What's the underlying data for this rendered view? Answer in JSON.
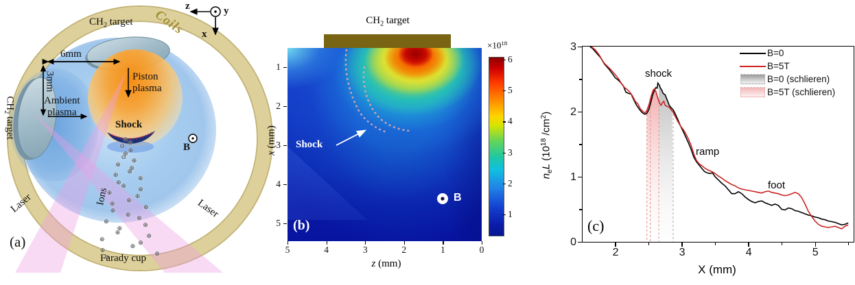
{
  "panel_a": {
    "label": "(a)",
    "coils": "Coils",
    "target_top": {
      "pre": "CH",
      "sub": "2",
      "post": " target"
    },
    "target_left": {
      "pre": "CH",
      "sub": "2",
      "post": " target"
    },
    "dim_width": "6mm",
    "dim_height": "3mm",
    "piston_line1": "Piston",
    "piston_line2": "plasma",
    "ambient_line1": "Ambient",
    "ambient_line2": "plasma",
    "shock": "Shock",
    "bfield": "B",
    "ions": "Ions",
    "laser_left": "Laser",
    "laser_right": "Laser",
    "faraday": "Farady cup",
    "axis_z": "z",
    "axis_y": "y",
    "axis_x": "x"
  },
  "panel_b": {
    "label": "(b)",
    "target": {
      "pre": "CH",
      "sub": "2",
      "post": " target"
    },
    "shock": "Shock",
    "bfield": "B",
    "xlabel": {
      "var": "z",
      "unit": " (mm)"
    },
    "ylabel": {
      "var": "x",
      "unit": " (mm)"
    },
    "x_ticks": [
      "5",
      "4",
      "3",
      "2",
      "1",
      "0"
    ],
    "y_ticks": [
      "1",
      "2",
      "3",
      "4",
      "5"
    ],
    "colorbar": {
      "scale": {
        "base": "×10",
        "exp": "18"
      },
      "ticks": [
        "6",
        "5",
        "4",
        "3",
        "2",
        "1"
      ]
    }
  },
  "panel_c": {
    "label": "(c)",
    "xlabel": "X (mm)",
    "ylabel": {
      "var1": "n",
      "sub": "e",
      "var2": "L",
      "rest1": " (10",
      "sup1": "18",
      "rest2": " /cm",
      "sup2": "2",
      "rest3": ")"
    },
    "x_ticks": [
      "2",
      "3",
      "4",
      "5"
    ],
    "y_ticks": [
      "3",
      "2",
      "1",
      "0"
    ],
    "annotations": {
      "shock": "shock",
      "ramp": "ramp",
      "foot": "foot"
    }
  },
  "chart_data": [
    {
      "type": "heatmap",
      "panel": "b",
      "title": "CH2 target",
      "xlabel": "z (mm)",
      "ylabel": "x (mm)",
      "x_range": [
        5,
        0
      ],
      "y_range": [
        0.5,
        5.45
      ],
      "colorbar": {
        "scale": "x10^18",
        "ticks": [
          6,
          5,
          4,
          3,
          2,
          1
        ]
      },
      "features": {
        "target_bar_z_range": [
          4.06,
          0.8
        ],
        "hotspot": {
          "z": 1.7,
          "x": 0.65,
          "peak_value_1e18": 6
        },
        "background_value_1e18": 1,
        "shock_front_arc_1": {
          "from": {
            "z": 3.5,
            "x": 0.55
          },
          "to": {
            "z": 2.46,
            "x": 2.67
          }
        },
        "shock_front_arc_2": {
          "from": {
            "z": 3.0,
            "x": 1.0
          },
          "to": {
            "z": 1.86,
            "x": 2.6
          }
        },
        "b_field_marker": {
          "z": 1.0,
          "x": 4.35,
          "direction": "out-of-page"
        }
      }
    },
    {
      "type": "line",
      "panel": "c",
      "xlabel": "X (mm)",
      "ylabel": "neL (10^18 /cm^2)",
      "xlim": [
        1.51,
        5.58
      ],
      "ylim": [
        0,
        3
      ],
      "x_major_ticks": [
        2,
        3,
        4,
        5
      ],
      "y_major_ticks": [
        0,
        1,
        2,
        3
      ],
      "legend_position": "top-right",
      "series": [
        {
          "name": "B=0",
          "color": "#000000",
          "points": [
            [
              1.62,
              3.02
            ],
            [
              1.66,
              2.97
            ],
            [
              1.72,
              2.9
            ],
            [
              1.78,
              2.83
            ],
            [
              1.84,
              2.73
            ],
            [
              1.9,
              2.66
            ],
            [
              1.96,
              2.58
            ],
            [
              2.0,
              2.52
            ],
            [
              2.04,
              2.49
            ],
            [
              2.08,
              2.45
            ],
            [
              2.12,
              2.4
            ],
            [
              2.16,
              2.3
            ],
            [
              2.2,
              2.28
            ],
            [
              2.24,
              2.27
            ],
            [
              2.28,
              2.18
            ],
            [
              2.32,
              2.1
            ],
            [
              2.36,
              2.04
            ],
            [
              2.4,
              1.99
            ],
            [
              2.44,
              1.96
            ],
            [
              2.47,
              1.97
            ],
            [
              2.5,
              2.02
            ],
            [
              2.53,
              2.12
            ],
            [
              2.56,
              2.25
            ],
            [
              2.59,
              2.33
            ],
            [
              2.61,
              2.37
            ],
            [
              2.63,
              2.36
            ],
            [
              2.64,
              2.44
            ],
            [
              2.66,
              2.41
            ],
            [
              2.68,
              2.36
            ],
            [
              2.7,
              2.33
            ],
            [
              2.72,
              2.28
            ],
            [
              2.75,
              2.26
            ],
            [
              2.78,
              2.18
            ],
            [
              2.81,
              2.1
            ],
            [
              2.84,
              2.06
            ],
            [
              2.87,
              2.03
            ],
            [
              2.9,
              1.97
            ],
            [
              2.94,
              1.88
            ],
            [
              2.98,
              1.78
            ],
            [
              3.02,
              1.7
            ],
            [
              3.06,
              1.61
            ],
            [
              3.1,
              1.52
            ],
            [
              3.14,
              1.42
            ],
            [
              3.18,
              1.3
            ],
            [
              3.22,
              1.23
            ],
            [
              3.26,
              1.18
            ],
            [
              3.3,
              1.13
            ],
            [
              3.34,
              1.08
            ],
            [
              3.38,
              1.06
            ],
            [
              3.42,
              1.05
            ],
            [
              3.46,
              1.06
            ],
            [
              3.5,
              1.0
            ],
            [
              3.55,
              0.95
            ],
            [
              3.6,
              0.9
            ],
            [
              3.65,
              0.86
            ],
            [
              3.7,
              0.8
            ],
            [
              3.75,
              0.74
            ],
            [
              3.8,
              0.74
            ],
            [
              3.85,
              0.77
            ],
            [
              3.9,
              0.74
            ],
            [
              3.95,
              0.69
            ],
            [
              4.0,
              0.65
            ],
            [
              4.05,
              0.62
            ],
            [
              4.1,
              0.6
            ],
            [
              4.15,
              0.62
            ],
            [
              4.2,
              0.63
            ],
            [
              4.25,
              0.6
            ],
            [
              4.3,
              0.58
            ],
            [
              4.35,
              0.56
            ],
            [
              4.4,
              0.58
            ],
            [
              4.45,
              0.56
            ],
            [
              4.5,
              0.5
            ],
            [
              4.55,
              0.49
            ],
            [
              4.6,
              0.52
            ],
            [
              4.65,
              0.51
            ],
            [
              4.7,
              0.48
            ],
            [
              4.75,
              0.47
            ],
            [
              4.8,
              0.45
            ],
            [
              4.85,
              0.43
            ],
            [
              4.9,
              0.41
            ],
            [
              4.95,
              0.4
            ],
            [
              5.0,
              0.38
            ],
            [
              5.05,
              0.37
            ],
            [
              5.1,
              0.35
            ],
            [
              5.15,
              0.34
            ],
            [
              5.2,
              0.32
            ],
            [
              5.25,
              0.31
            ],
            [
              5.3,
              0.3
            ],
            [
              5.35,
              0.28
            ],
            [
              5.4,
              0.26
            ],
            [
              5.45,
              0.27
            ],
            [
              5.5,
              0.29
            ]
          ]
        },
        {
          "name": "B=5T",
          "color": "#cc2222",
          "points": [
            [
              1.64,
              3.0
            ],
            [
              1.7,
              2.95
            ],
            [
              1.76,
              2.87
            ],
            [
              1.8,
              2.8
            ],
            [
              1.84,
              2.74
            ],
            [
              1.88,
              2.7
            ],
            [
              1.94,
              2.64
            ],
            [
              2.0,
              2.57
            ],
            [
              2.06,
              2.49
            ],
            [
              2.1,
              2.42
            ],
            [
              2.14,
              2.37
            ],
            [
              2.18,
              2.34
            ],
            [
              2.22,
              2.3
            ],
            [
              2.26,
              2.24
            ],
            [
              2.3,
              2.16
            ],
            [
              2.34,
              2.12
            ],
            [
              2.38,
              2.04
            ],
            [
              2.42,
              2.0
            ],
            [
              2.45,
              1.98
            ],
            [
              2.48,
              2.03
            ],
            [
              2.51,
              2.12
            ],
            [
              2.54,
              2.24
            ],
            [
              2.57,
              2.33
            ],
            [
              2.59,
              2.35
            ],
            [
              2.61,
              2.31
            ],
            [
              2.63,
              2.24
            ],
            [
              2.65,
              2.18
            ],
            [
              2.67,
              2.12
            ],
            [
              2.69,
              2.1
            ],
            [
              2.71,
              2.14
            ],
            [
              2.73,
              2.16
            ],
            [
              2.75,
              2.1
            ],
            [
              2.78,
              2.08
            ],
            [
              2.81,
              2.07
            ],
            [
              2.84,
              2.03
            ],
            [
              2.87,
              1.99
            ],
            [
              2.9,
              1.93
            ],
            [
              2.94,
              1.85
            ],
            [
              2.98,
              1.78
            ],
            [
              3.02,
              1.73
            ],
            [
              3.06,
              1.66
            ],
            [
              3.1,
              1.58
            ],
            [
              3.14,
              1.48
            ],
            [
              3.18,
              1.35
            ],
            [
              3.22,
              1.25
            ],
            [
              3.26,
              1.2
            ],
            [
              3.3,
              1.17
            ],
            [
              3.35,
              1.13
            ],
            [
              3.4,
              1.1
            ],
            [
              3.45,
              1.08
            ],
            [
              3.5,
              1.05
            ],
            [
              3.55,
              1.01
            ],
            [
              3.6,
              0.98
            ],
            [
              3.65,
              0.94
            ],
            [
              3.7,
              0.91
            ],
            [
              3.75,
              0.88
            ],
            [
              3.8,
              0.86
            ],
            [
              3.85,
              0.83
            ],
            [
              3.9,
              0.81
            ],
            [
              3.95,
              0.8
            ],
            [
              4.0,
              0.79
            ],
            [
              4.05,
              0.78
            ],
            [
              4.1,
              0.77
            ],
            [
              4.15,
              0.76
            ],
            [
              4.2,
              0.75
            ],
            [
              4.25,
              0.77
            ],
            [
              4.3,
              0.78
            ],
            [
              4.35,
              0.76
            ],
            [
              4.4,
              0.75
            ],
            [
              4.45,
              0.74
            ],
            [
              4.5,
              0.72
            ],
            [
              4.55,
              0.71
            ],
            [
              4.6,
              0.72
            ],
            [
              4.65,
              0.74
            ],
            [
              4.7,
              0.76
            ],
            [
              4.75,
              0.74
            ],
            [
              4.8,
              0.68
            ],
            [
              4.85,
              0.58
            ],
            [
              4.9,
              0.47
            ],
            [
              4.95,
              0.39
            ],
            [
              5.0,
              0.32
            ],
            [
              5.05,
              0.27
            ],
            [
              5.1,
              0.24
            ],
            [
              5.15,
              0.23
            ],
            [
              5.2,
              0.22
            ],
            [
              5.25,
              0.23
            ],
            [
              5.3,
              0.24
            ],
            [
              5.35,
              0.22
            ],
            [
              5.4,
              0.2
            ],
            [
              5.45,
              0.24
            ],
            [
              5.5,
              0.26
            ]
          ]
        }
      ],
      "bands": [
        {
          "name": "B=5T (schlieren)",
          "source_series": "B=5T",
          "x0": 2.475,
          "x1": 2.655,
          "fill_top": "rgba(234,120,120,0.6)",
          "fill_bottom": "rgba(255,245,245,0.1)",
          "edge_color": "#e49c9c",
          "dashed_edges": [
            2.475,
            2.527,
            2.655
          ]
        },
        {
          "name": "B=0 (schlieren)",
          "source_series": "B=0",
          "x0": 2.655,
          "x1": 2.87,
          "fill_top": "rgba(135,135,135,0.55)",
          "fill_bottom": "rgba(245,245,245,0.1)",
          "edge_color": "#b4b4b4",
          "dashed_edges": [
            2.87
          ]
        }
      ],
      "legend": [
        {
          "label": "B=0",
          "type": "line",
          "color": "#000000"
        },
        {
          "label": "B=5T",
          "type": "line",
          "color": "#cc2222"
        },
        {
          "label": "B=0 (schlieren)",
          "type": "band",
          "color_top": "#9a9a9a",
          "color_bottom": "#f5f5f5",
          "border": "#bbbbbb"
        },
        {
          "label": "B=5T (schlieren)",
          "type": "band",
          "color_top": "#f2b6b6",
          "color_bottom": "#fdf0f0",
          "border": "#e8b0b0"
        }
      ]
    }
  ]
}
